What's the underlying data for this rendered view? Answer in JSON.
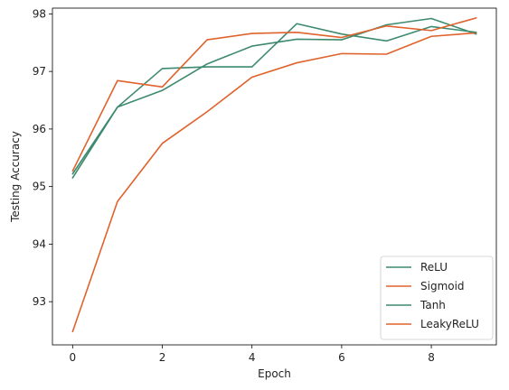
{
  "chart_data": {
    "type": "line",
    "title": "",
    "xlabel": "Epoch",
    "ylabel": "Testing Accuracy",
    "xlim": [
      -0.45,
      9.45
    ],
    "ylim": [
      92.25,
      98.1
    ],
    "xticks": [
      0,
      2,
      4,
      6,
      8
    ],
    "yticks": [
      93,
      94,
      95,
      96,
      97,
      98
    ],
    "grid": false,
    "legend_position": "lower-right",
    "x": [
      0,
      1,
      2,
      3,
      4,
      5,
      6,
      7,
      8,
      9
    ],
    "series": [
      {
        "name": "ReLU",
        "color": "#3d8a6e",
        "values": [
          95.15,
          96.38,
          96.67,
          97.13,
          97.44,
          97.56,
          97.55,
          97.81,
          97.92,
          97.65
        ]
      },
      {
        "name": "Sigmoid",
        "color": "#e0622c",
        "values": [
          92.48,
          94.74,
          95.75,
          96.3,
          96.9,
          97.15,
          97.31,
          97.3,
          97.61,
          97.67
        ]
      },
      {
        "name": "Tanh",
        "color": "#3d8a6e",
        "values": [
          95.22,
          96.38,
          97.05,
          97.08,
          97.08,
          97.83,
          97.65,
          97.53,
          97.78,
          97.68
        ]
      },
      {
        "name": "LeakyReLU",
        "color": "#e0622c",
        "values": [
          95.27,
          96.84,
          96.73,
          97.55,
          97.66,
          97.68,
          97.59,
          97.79,
          97.71,
          97.93
        ]
      }
    ]
  }
}
